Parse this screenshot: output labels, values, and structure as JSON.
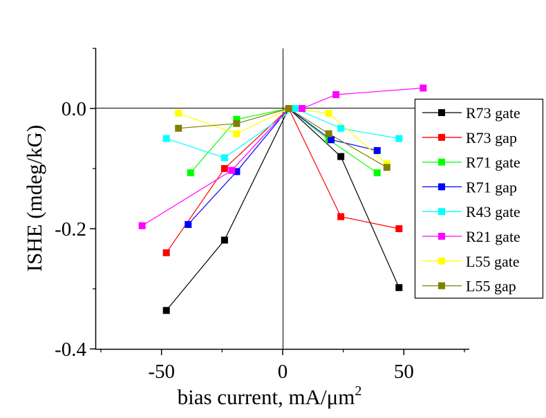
{
  "chart_data": {
    "type": "scatter",
    "xlabel": "bias current, mA/μm",
    "xlabel_sup": "2",
    "ylabel": "ISHE (mdeg/kG)",
    "xlim": [
      -77,
      77
    ],
    "ylim": [
      -0.4,
      0.1
    ],
    "xticks": [
      -50,
      0,
      50
    ],
    "xtick_labels": [
      "-50",
      "0",
      "50"
    ],
    "yticks": [
      -0.4,
      -0.2,
      0.0
    ],
    "ytick_labels": [
      "-0.4",
      "-0.2",
      "0.0"
    ],
    "zero_lines": true,
    "legend_position": "right",
    "series": [
      {
        "name": "R73 gate",
        "color": "#000000",
        "points": [
          [
            -48,
            -0.336
          ],
          [
            -24,
            -0.219
          ],
          [
            2.5,
            0
          ],
          [
            24,
            -0.08
          ],
          [
            48,
            -0.298
          ]
        ]
      },
      {
        "name": "R73 gap",
        "color": "#ff0000",
        "points": [
          [
            -48,
            -0.24
          ],
          [
            -24,
            -0.1
          ],
          [
            2.5,
            0
          ],
          [
            24,
            -0.18
          ],
          [
            48,
            -0.2
          ]
        ]
      },
      {
        "name": "R71 gate",
        "color": "#00ff00",
        "points": [
          [
            -38,
            -0.107
          ],
          [
            -19,
            -0.018
          ],
          [
            2.5,
            0
          ],
          [
            19,
            -0.052
          ],
          [
            39,
            -0.107
          ]
        ]
      },
      {
        "name": "R71 gap",
        "color": "#0000ff",
        "points": [
          [
            -39,
            -0.193
          ],
          [
            -19,
            -0.105
          ],
          [
            2.5,
            0
          ],
          [
            20,
            -0.052
          ],
          [
            39,
            -0.07
          ]
        ]
      },
      {
        "name": "R43 gate",
        "color": "#00ffff",
        "points": [
          [
            -48,
            -0.05
          ],
          [
            -24,
            -0.082
          ],
          [
            5,
            0
          ],
          [
            24,
            -0.033
          ],
          [
            48,
            -0.05
          ]
        ]
      },
      {
        "name": "R21 gate",
        "color": "#ff00ff",
        "points": [
          [
            -58,
            -0.195
          ],
          [
            -21,
            -0.103
          ],
          [
            2.5,
            0
          ],
          [
            8,
            0
          ],
          [
            22,
            0.023
          ],
          [
            58,
            0.034
          ]
        ]
      },
      {
        "name": "L55 gate",
        "color": "#ffff00",
        "points": [
          [
            -43,
            -0.008
          ],
          [
            -19,
            -0.042
          ],
          [
            2.5,
            0
          ],
          [
            19,
            -0.008
          ],
          [
            43,
            -0.092
          ]
        ]
      },
      {
        "name": "L55 gap",
        "color": "#808000",
        "points": [
          [
            -43,
            -0.033
          ],
          [
            -19,
            -0.025
          ],
          [
            2.5,
            0
          ],
          [
            19,
            -0.042
          ],
          [
            43,
            -0.098
          ]
        ]
      }
    ]
  }
}
